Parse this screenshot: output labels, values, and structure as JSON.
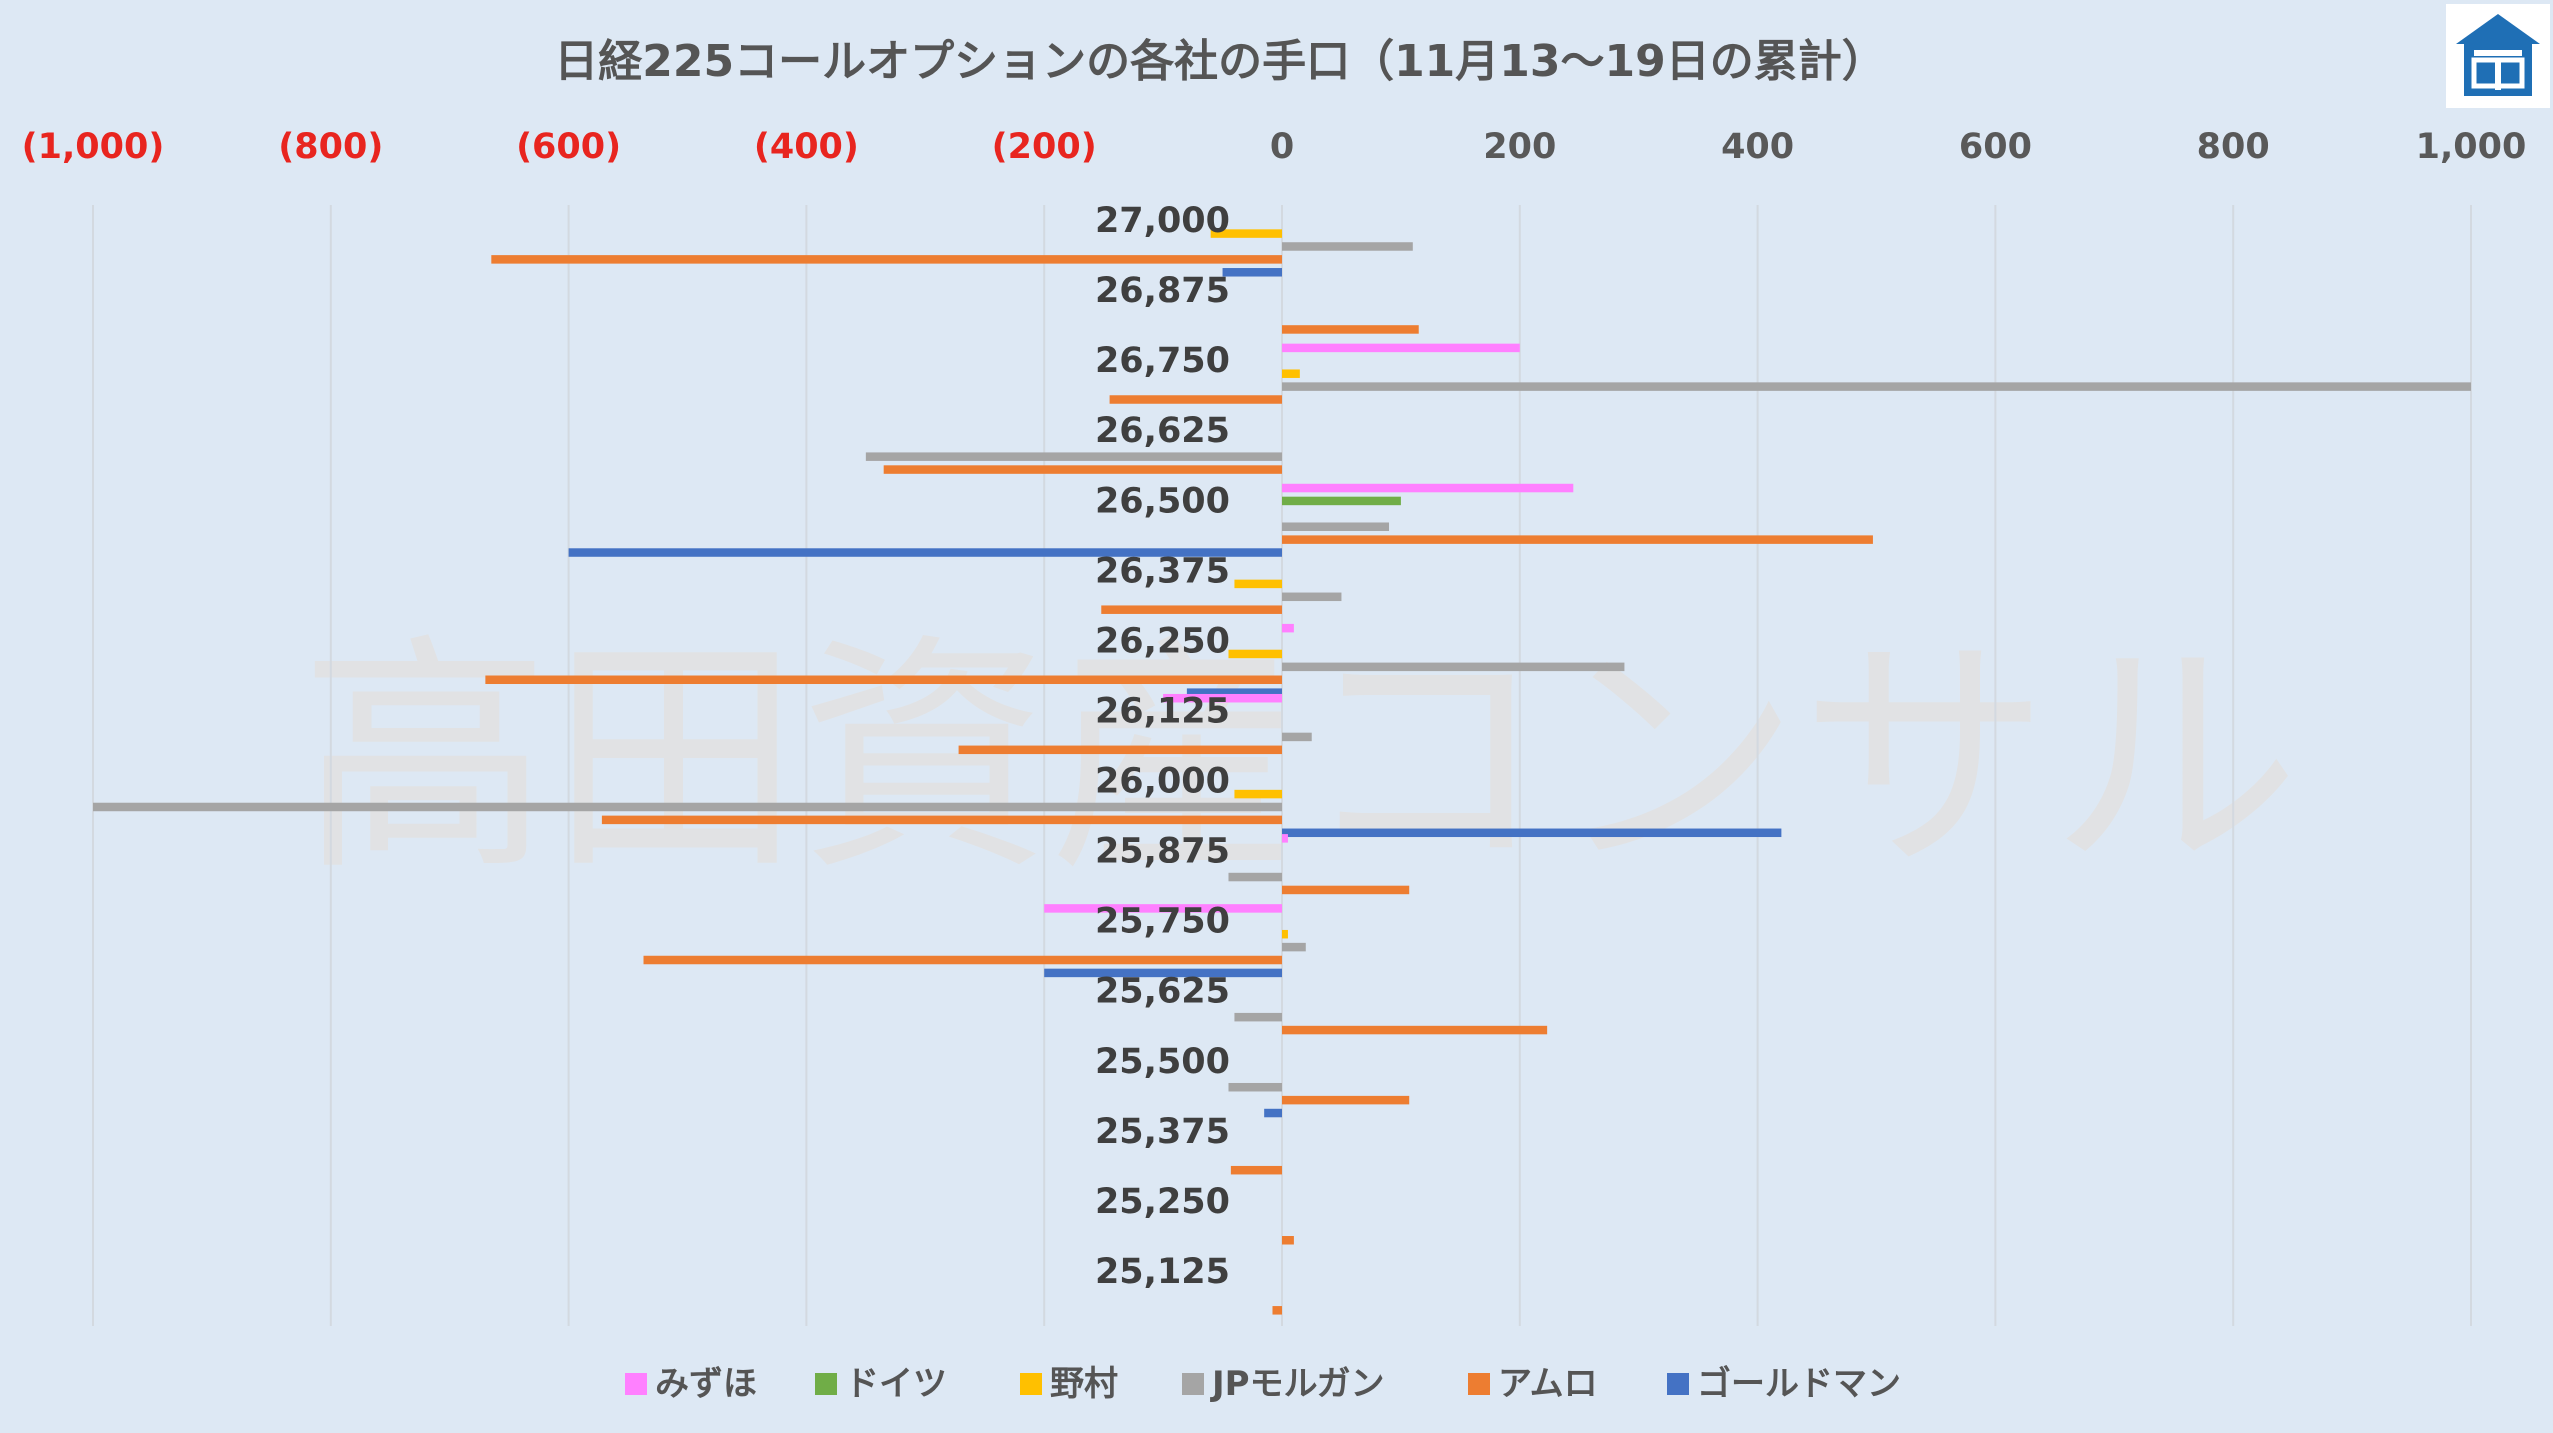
{
  "chart_data": {
    "type": "bar",
    "orientation": "horizontal",
    "title": "日経225コールオプションの各社の手口（11月13〜19日の累計）",
    "watermark": "高田資産コンサル",
    "logo": "takata-logo",
    "xlim": [
      -1000,
      1000
    ],
    "x_ticks": [
      {
        "value": -1000,
        "label": "(1,000)"
      },
      {
        "value": -800,
        "label": "(800)"
      },
      {
        "value": -600,
        "label": "(600)"
      },
      {
        "value": -400,
        "label": "(400)"
      },
      {
        "value": -200,
        "label": "(200)"
      },
      {
        "value": 0,
        "label": "0"
      },
      {
        "value": 200,
        "label": "200"
      },
      {
        "value": 400,
        "label": "400"
      },
      {
        "value": 600,
        "label": "600"
      },
      {
        "value": 800,
        "label": "800"
      },
      {
        "value": 1000,
        "label": "1,000"
      }
    ],
    "negative_tick_color": "#e8251f",
    "positive_tick_color": "#595959",
    "grid": true,
    "legend_position": "bottom",
    "categories": [
      "27,000",
      "26,875",
      "26,750",
      "26,625",
      "26,500",
      "26,375",
      "26,250",
      "26,125",
      "26,000",
      "25,875",
      "25,750",
      "25,625",
      "25,500",
      "25,375",
      "25,250",
      "25,125"
    ],
    "series": [
      {
        "name": "みずほ",
        "color": "#ff80ff",
        "values": [
          0,
          0,
          200,
          0,
          245,
          0,
          10,
          -100,
          0,
          5,
          -200,
          0,
          0,
          0,
          0,
          0
        ]
      },
      {
        "name": "ドイツ",
        "color": "#70ad47",
        "values": [
          0,
          0,
          0,
          0,
          100,
          0,
          0,
          0,
          0,
          0,
          0,
          0,
          0,
          0,
          0,
          0
        ]
      },
      {
        "name": "野村",
        "color": "#ffc000",
        "values": [
          -60,
          0,
          15,
          0,
          0,
          -40,
          -45,
          0,
          -40,
          0,
          5,
          0,
          0,
          0,
          0,
          0
        ]
      },
      {
        "name": "JPモルガン",
        "color": "#a5a5a5",
        "values": [
          110,
          0,
          1000,
          -350,
          90,
          50,
          288,
          25,
          -1000,
          -45,
          20,
          -40,
          -45,
          0,
          0,
          0
        ]
      },
      {
        "name": "アムロ",
        "color": "#ed7d31",
        "values": [
          -665,
          115,
          -145,
          -335,
          497,
          -152,
          -670,
          -272,
          -572,
          107,
          -537,
          223,
          107,
          -43,
          10,
          -8
        ]
      },
      {
        "name": "ゴールドマン",
        "color": "#4472c4",
        "values": [
          -50,
          0,
          0,
          0,
          -600,
          0,
          -80,
          0,
          420,
          0,
          -200,
          0,
          -15,
          0,
          0,
          0
        ]
      }
    ]
  }
}
